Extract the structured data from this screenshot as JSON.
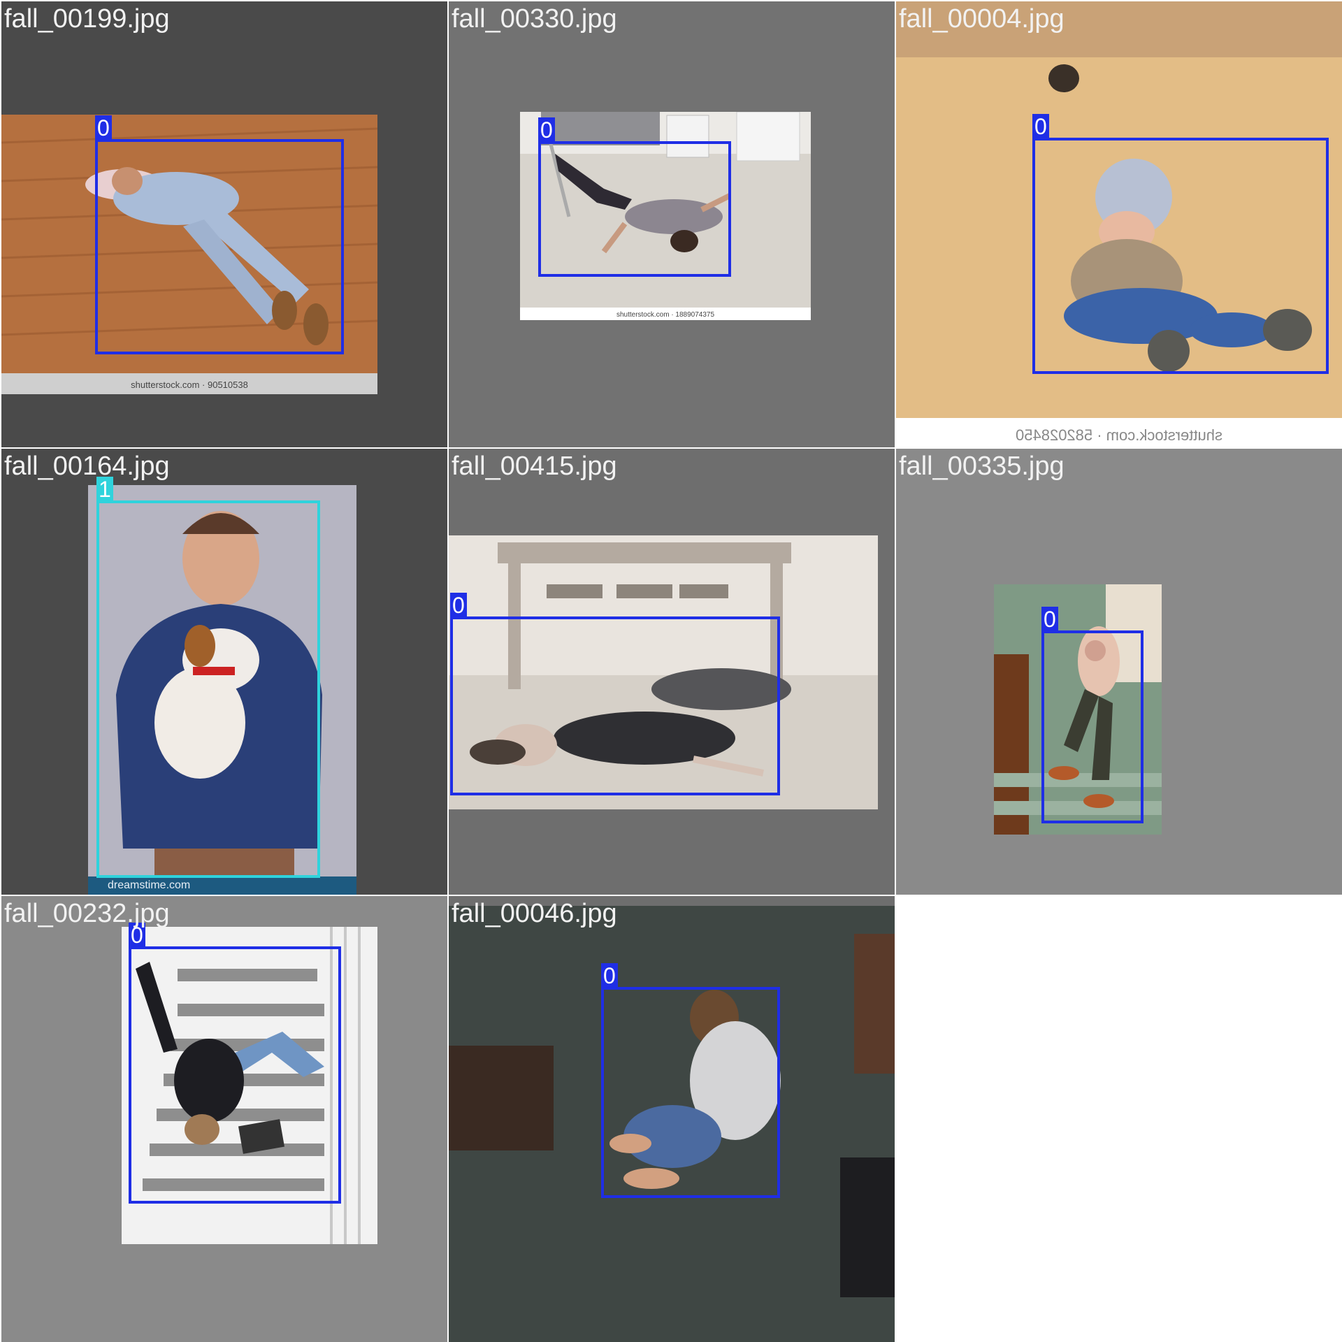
{
  "colors": {
    "class_0": "#1f2ee6",
    "class_1": "#2fd3dc",
    "tile_gray": "#808080"
  },
  "tiles": [
    {
      "filename": "fall_00199.jpg",
      "watermark": "shutterstock.com · 90510538",
      "boxes": [
        {
          "label": "0"
        }
      ]
    },
    {
      "filename": "fall_00330.jpg",
      "watermark": "shutterstock.com · 1889074375",
      "boxes": [
        {
          "label": "0"
        }
      ]
    },
    {
      "filename": "fall_00004.jpg",
      "watermark": "shutterstock.com · 582028450",
      "boxes": [
        {
          "label": "0"
        }
      ]
    },
    {
      "filename": "fall_00164.jpg",
      "watermark": "dreamstime.com",
      "boxes": [
        {
          "label": "1"
        }
      ]
    },
    {
      "filename": "fall_00415.jpg",
      "boxes": [
        {
          "label": "0"
        }
      ]
    },
    {
      "filename": "fall_00335.jpg",
      "boxes": [
        {
          "label": "0"
        }
      ]
    },
    {
      "filename": "fall_00232.jpg",
      "boxes": [
        {
          "label": "0"
        }
      ]
    },
    {
      "filename": "fall_00046.jpg",
      "boxes": [
        {
          "label": "0"
        }
      ]
    }
  ]
}
